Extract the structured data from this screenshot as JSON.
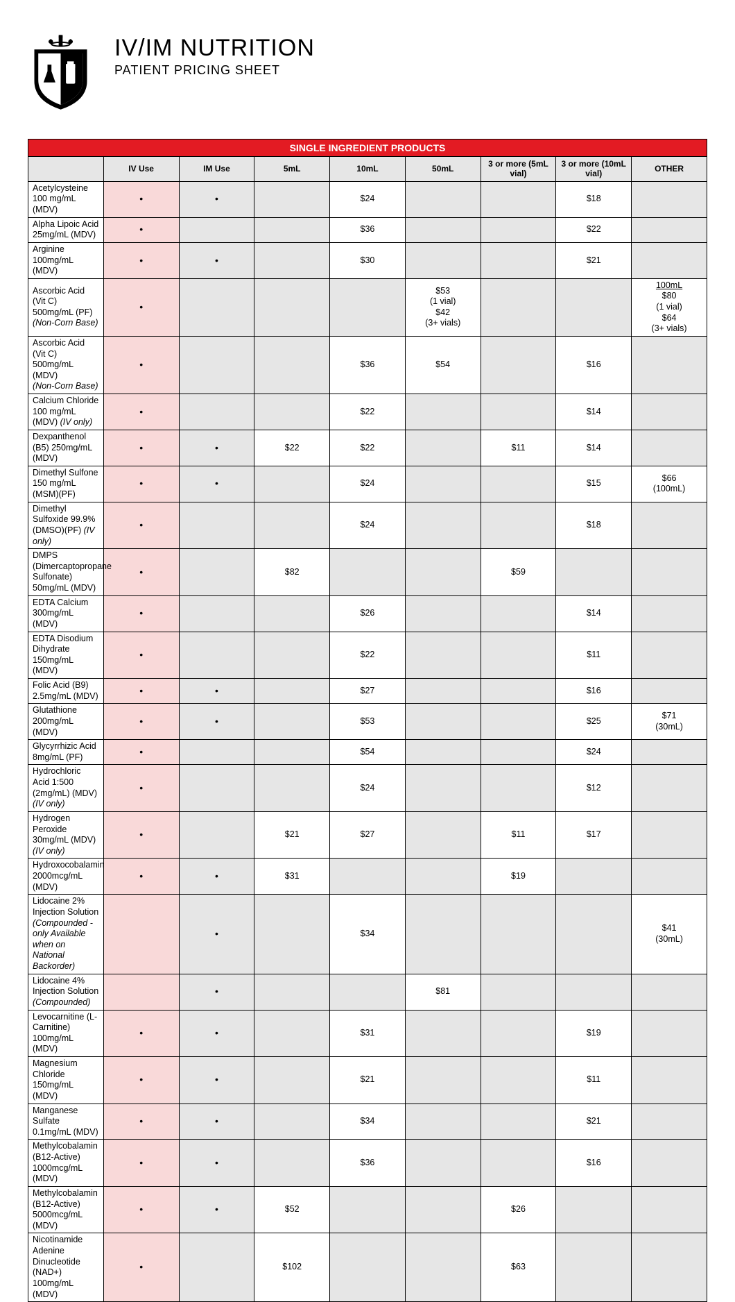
{
  "header": {
    "title": "IV/IM NUTRITION",
    "subtitle": "PATIENT PRICING SHEET"
  },
  "section_title": "SINGLE INGREDIENT PRODUCTS",
  "columns": {
    "iv": "IV Use",
    "im": "IM Use",
    "c5": "5mL",
    "c10": "10mL",
    "c50": "50mL",
    "c3a": "3 or more (5mL vial)",
    "c3b": "3 or more (10mL vial)",
    "oth": "OTHER"
  },
  "rows": [
    {
      "name": "Acetylcysteine 100 mg/mL (MDV)",
      "iv": true,
      "im": true,
      "c10": "$24",
      "c3b": "$18"
    },
    {
      "name": "Alpha Lipoic Acid 25mg/mL (MDV)",
      "iv": true,
      "c10": "$36",
      "c3b": "$22"
    },
    {
      "name": "Arginine 100mg/mL (MDV)",
      "iv": true,
      "im": true,
      "c10": "$30",
      "c3b": "$21"
    },
    {
      "name": "Ascorbic Acid (Vit C) 500mg/mL (PF)\n<i>(Non-Corn Base)</i>",
      "iv": true,
      "c50": "$53\n(1 vial)\n$42\n(3+ vials)",
      "oth": "<u>100mL</u>\n$80\n(1 vial)\n$64\n(3+ vials)"
    },
    {
      "name": "Ascorbic Acid (Vit C) 500mg/mL (MDV)\n<i>(Non-Corn Base)</i>",
      "iv": true,
      "c10": "$36",
      "c50": "$54",
      "c3b": "$16"
    },
    {
      "name": "Calcium Chloride 100 mg/mL (MDV) <i>(IV only)</i>",
      "iv": true,
      "c10": "$22",
      "c3b": "$14"
    },
    {
      "name": "Dexpanthenol (B5) 250mg/mL (MDV)",
      "iv": true,
      "im": true,
      "c5": "$22",
      "c10": "$22",
      "c3a": "$11",
      "c3b": "$14"
    },
    {
      "name": "Dimethyl Sulfone 150 mg/mL (MSM)(PF)",
      "iv": true,
      "im": true,
      "c10": "$24",
      "c3b": "$15",
      "oth": "$66\n(100mL)"
    },
    {
      "name": "Dimethyl Sulfoxide 99.9% (DMSO)(PF) <i>(IV only)</i>",
      "iv": true,
      "c10": "$24",
      "c3b": "$18"
    },
    {
      "name": "DMPS (Dimercaptopropane Sulfonate) 50mg/mL (MDV)",
      "iv": true,
      "c5": "$82",
      "c3a": "$59"
    },
    {
      "name": "EDTA Calcium 300mg/mL (MDV)",
      "iv": true,
      "c10": "$26",
      "c3b": "$14"
    },
    {
      "name": "EDTA Disodium Dihydrate 150mg/mL (MDV)",
      "iv": true,
      "c10": "$22",
      "c3b": "$11"
    },
    {
      "name": "Folic Acid (B9) 2.5mg/mL (MDV)",
      "iv": true,
      "im": true,
      "c10": "$27",
      "c3b": "$16"
    },
    {
      "name": "Glutathione 200mg/mL (MDV)",
      "iv": true,
      "im": true,
      "c10": "$53",
      "c3b": "$25",
      "oth": "$71\n(30mL)"
    },
    {
      "name": "Glycyrrhizic Acid 8mg/mL (PF)",
      "iv": true,
      "c10": "$54",
      "c3b": "$24"
    },
    {
      "name": "Hydrochloric Acid 1:500 (2mg/mL) (MDV)\n <i>(IV only)</i>",
      "iv": true,
      "c10": "$24",
      "c3b": "$12"
    },
    {
      "name": "Hydrogen Peroxide 30mg/mL (MDV) <i>(IV only)</i>",
      "iv": true,
      "c5": "$21",
      "c10": "$27",
      "c3a": "$11",
      "c3b": "$17"
    },
    {
      "name": "Hydroxocobalamin 2000mcg/mL (MDV)",
      "iv": true,
      "im": true,
      "c5": "$31",
      "c3a": "$19"
    },
    {
      "name": "Lidocaine 2% Injection Solution\n<i>(Compounded - only Available when on National Backorder)</i>",
      "im": true,
      "c10": "$34",
      "oth": "$41\n(30mL)"
    },
    {
      "name": "Lidocaine 4% Injection Solution <i>(Compounded)</i>",
      "im": true,
      "c50": "$81"
    },
    {
      "name": "Levocarnitine (L-Carnitine) 100mg/mL (MDV)",
      "iv": true,
      "im": true,
      "c10": "$31",
      "c3b": "$19"
    },
    {
      "name": "Magnesium Chloride 150mg/mL (MDV)",
      "iv": true,
      "im": true,
      "c10": "$21",
      "c3b": "$11"
    },
    {
      "name": "Manganese Sulfate 0.1mg/mL (MDV)",
      "iv": true,
      "im": true,
      "c10": "$34",
      "c3b": "$21"
    },
    {
      "name": "Methylcobalamin (B12-Active) 1000mcg/mL (MDV)",
      "iv": true,
      "im": true,
      "c10": "$36",
      "c3b": "$16"
    },
    {
      "name": "Methylcobalamin (B12-Active) 5000mcg/mL (MDV)",
      "iv": true,
      "im": true,
      "c5": "$52",
      "c3a": "$26"
    },
    {
      "name": "Nicotinamide Adenine Dinucleotide (NAD+) 100mg/mL (MDV)",
      "iv": true,
      "c5": "$102",
      "c3a": "$63"
    }
  ],
  "colors": {
    "accent": "#e31b23",
    "gray": "#e6e6e6",
    "pink": "#f9d9d9"
  }
}
